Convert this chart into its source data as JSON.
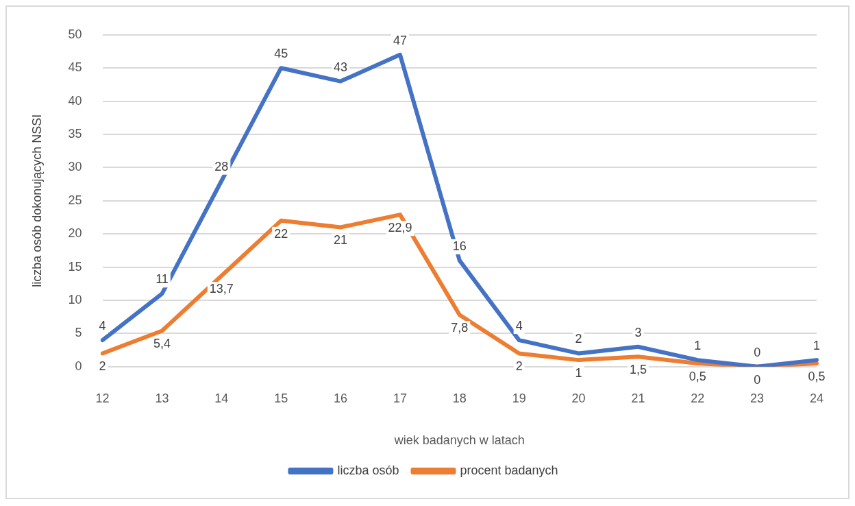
{
  "chart_data": {
    "type": "line",
    "xlabel": "wiek badanych w latach",
    "ylabel": "liczba osób dokonujących NSSI",
    "categories": [
      "12",
      "13",
      "14",
      "15",
      "16",
      "17",
      "18",
      "19",
      "20",
      "21",
      "22",
      "23",
      "24"
    ],
    "series": [
      {
        "name": "liczba osób",
        "color": "#4472c4",
        "values": [
          4,
          11,
          28,
          45,
          43,
          47,
          16,
          4,
          2,
          3,
          1,
          0,
          1
        ],
        "value_labels": [
          "4",
          "11",
          "28",
          "45",
          "43",
          "47",
          "16",
          "4",
          "2",
          "3",
          "1",
          "0",
          "1"
        ]
      },
      {
        "name": "procent badanych",
        "color": "#ed7d31",
        "values": [
          2,
          5.4,
          13.7,
          22,
          21,
          22.9,
          7.8,
          2,
          1,
          1.5,
          0.5,
          0,
          0.5
        ],
        "value_labels": [
          "2",
          "5,4",
          "13,7",
          "22",
          "21",
          "22,9",
          "7,8",
          "2",
          "1",
          "1,5",
          "0,5",
          "0",
          "0,5"
        ]
      }
    ],
    "ylim": [
      0,
      50
    ],
    "yticks": [
      0,
      5,
      10,
      15,
      20,
      25,
      30,
      35,
      40,
      45,
      50
    ],
    "grid": "y",
    "legend": "bottom",
    "marker": "none",
    "line_style": "solid"
  }
}
